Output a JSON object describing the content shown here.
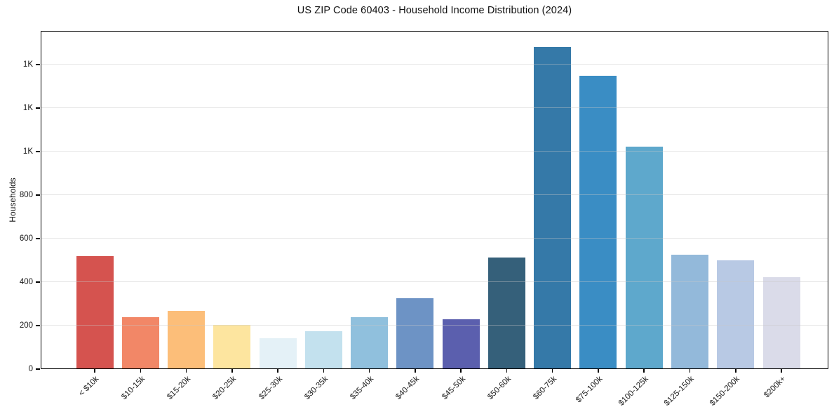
{
  "page": {
    "title": "US ZIP Code 60403 - Household Income Distribution (2024)"
  },
  "chart_data": {
    "type": "bar",
    "title": "US ZIP Code 60403 - Household Income Distribution (2024)",
    "xlabel": "",
    "ylabel": "Households",
    "categories": [
      "< $10k",
      "$10-15k",
      "$15-20k",
      "$20-25k",
      "$25-30k",
      "$30-35k",
      "$35-40k",
      "$40-45k",
      "$45-50k",
      "$50-60k",
      "$60-75k",
      "$75-100k",
      "$100-125k",
      "$125-150k",
      "$150-200k",
      "$200k+"
    ],
    "values": [
      520,
      240,
      268,
      202,
      142,
      175,
      240,
      325,
      229,
      513,
      1480,
      1348,
      1022,
      526,
      500,
      423
    ],
    "bar_colors": [
      "#d5534f",
      "#f28767",
      "#fcbe79",
      "#fde59f",
      "#e4f1f7",
      "#c3e1ee",
      "#90c0dd",
      "#6d93c5",
      "#5b5fae",
      "#35607a",
      "#3579a8",
      "#3a8dc4",
      "#5ea8cc",
      "#93b9da",
      "#b8c9e4",
      "#dadbe9"
    ],
    "ylim": [
      0,
      1554
    ],
    "yticks": [
      {
        "value": 0,
        "label": "0"
      },
      {
        "value": 200,
        "label": "200"
      },
      {
        "value": 400,
        "label": "400"
      },
      {
        "value": 600,
        "label": "600"
      },
      {
        "value": 800,
        "label": "800"
      },
      {
        "value": 1000,
        "label": "1K"
      },
      {
        "value": 1200,
        "label": "1K"
      },
      {
        "value": 1400,
        "label": "1K"
      }
    ],
    "grid": "horizontal",
    "legend": "none",
    "background": "#ffffff",
    "spine_color": "#000000",
    "gridline_color": "rgba(200,200,200,0.45)"
  }
}
